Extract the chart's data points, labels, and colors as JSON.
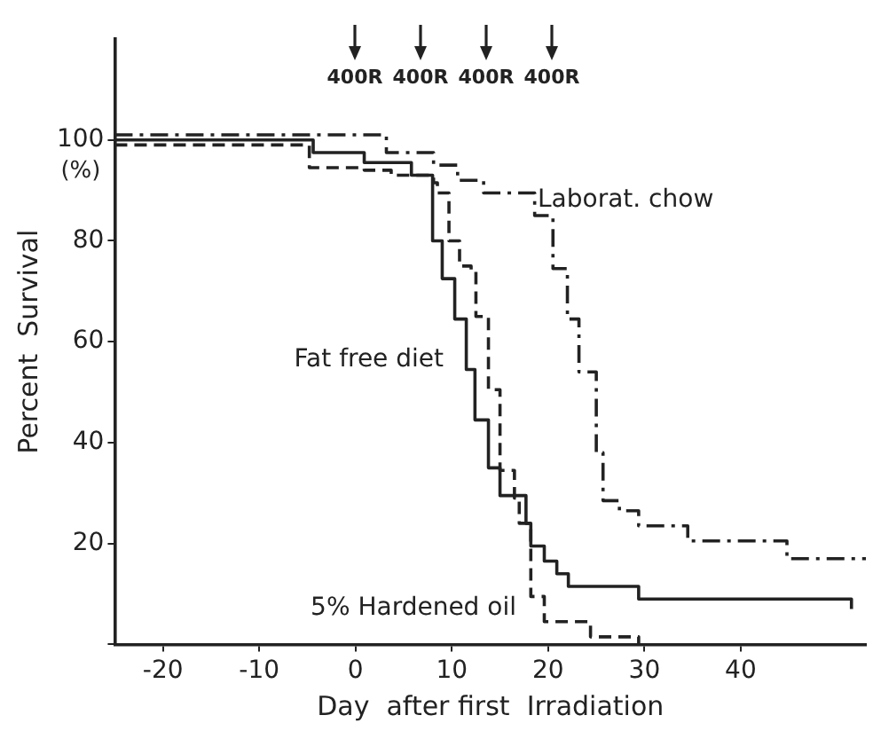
{
  "chart_data": {
    "type": "step",
    "xlabel": "Day  after first  Irradiation",
    "ylabel": "Percent  Survival",
    "xlim": [
      -25,
      53
    ],
    "xticks": [
      -20,
      -10,
      0,
      10,
      20,
      30,
      40
    ],
    "ylim": [
      0,
      120
    ],
    "yticks": [
      {
        "value": 0,
        "label": null
      },
      20,
      40,
      60,
      80,
      100
    ],
    "grid": false,
    "legend": false,
    "marker": "none",
    "annotations": [
      "(%)",
      "400R",
      "400R",
      "400R",
      "400R"
    ],
    "series": [
      {
        "name": "Laborat. chow",
        "color": "#222222",
        "line_style": "dashdot",
        "x": [
          -25,
          3.2,
          8.1,
          10.6,
          13.3,
          18.6,
          20.5,
          22,
          23.2,
          25,
          25.7,
          27.4,
          29.4,
          34.5,
          44.8,
          53
        ],
        "values": [
          101,
          97.5,
          95,
          92,
          89.5,
          85,
          74.5,
          64.5,
          54,
          38,
          28.5,
          26.5,
          23.5,
          20.5,
          17,
          17
        ]
      },
      {
        "name": "Fat free diet",
        "color": "#222222",
        "line_style": "solid",
        "x": [
          -25,
          -4.4,
          0.9,
          5.8,
          8,
          9,
          10.3,
          11.5,
          12.4,
          13.8,
          15,
          17.7,
          18.2,
          19.6,
          20.9,
          22.1,
          29.4,
          51.5
        ],
        "values": [
          100,
          97.5,
          95.5,
          93,
          80,
          72.5,
          64.5,
          54.5,
          44.5,
          35,
          29.5,
          24,
          19.5,
          16.5,
          14,
          11.5,
          9,
          7
        ]
      },
      {
        "name": "5% Hardened oil",
        "color": "#222222",
        "line_style": "dashed",
        "x": [
          -25,
          -4.8,
          0.9,
          3.7,
          8.1,
          8.5,
          9.7,
          10.8,
          12,
          12.5,
          13.8,
          15,
          16.5,
          17,
          18.2,
          19.6,
          24.4,
          29.4
        ],
        "values": [
          99,
          94.5,
          94,
          93,
          91.5,
          89.5,
          80,
          75,
          74,
          65,
          50.5,
          34.5,
          29,
          24,
          9.5,
          4.5,
          1.5,
          0
        ]
      }
    ]
  }
}
